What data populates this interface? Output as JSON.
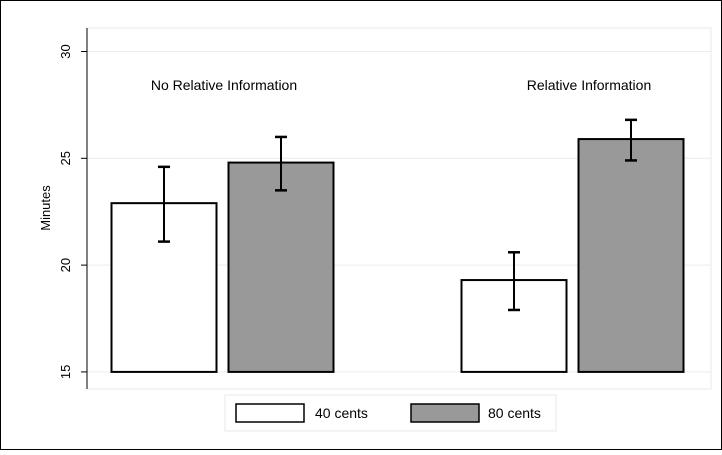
{
  "chart_data": {
    "type": "bar",
    "title": "",
    "xlabel": "",
    "ylabel": "Minutes",
    "ylim": [
      14.2,
      31.1
    ],
    "yticks": [
      15,
      20,
      25,
      30
    ],
    "grid": true,
    "legend_position": "bottom",
    "groups": [
      {
        "label": "No Relative Information",
        "bars": [
          {
            "series": "40 cents",
            "value": 22.9,
            "ci_low": 21.1,
            "ci_high": 24.6
          },
          {
            "series": "80 cents",
            "value": 24.8,
            "ci_low": 23.5,
            "ci_high": 26.0
          }
        ]
      },
      {
        "label": "Relative Information",
        "bars": [
          {
            "series": "40 cents",
            "value": 19.3,
            "ci_low": 17.9,
            "ci_high": 20.6
          },
          {
            "series": "80 cents",
            "value": 25.9,
            "ci_low": 24.9,
            "ci_high": 26.8
          }
        ]
      }
    ],
    "series": [
      {
        "name": "40 cents",
        "color": "#ffffff"
      },
      {
        "name": "80 cents",
        "color": "#999999"
      }
    ]
  }
}
